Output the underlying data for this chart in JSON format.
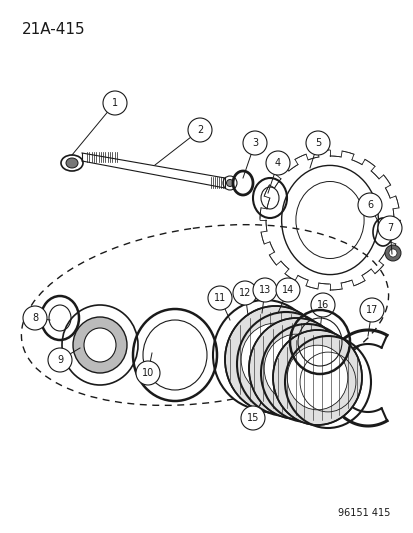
{
  "title": "21A-415",
  "watermark": "96151 415",
  "bg": "#ffffff",
  "lc": "#1a1a1a",
  "title_fs": 11,
  "wm_fs": 7,
  "balloon_fs": 7,
  "balloon_r": 0.018
}
